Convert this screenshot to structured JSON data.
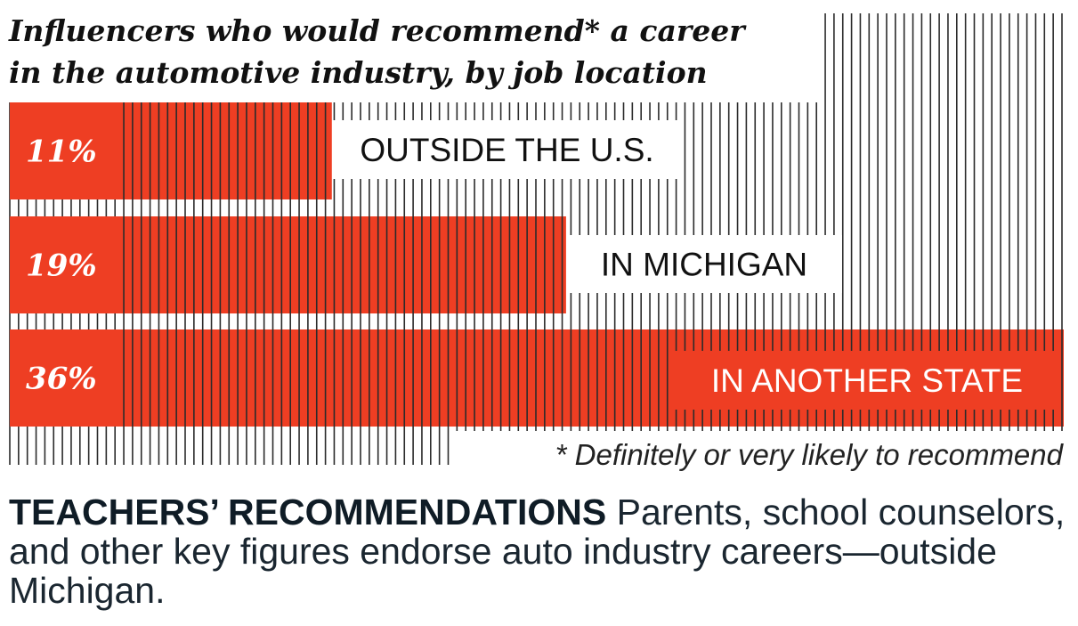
{
  "chart_data": {
    "type": "bar",
    "orientation": "horizontal",
    "title": "Influencers who would recommend* a career in the automotive industry, by job location",
    "title_lines": [
      "Influencers who would recommend* a career",
      "in the automotive industry, by job location"
    ],
    "categories": [
      "OUTSIDE THE U.S.",
      "IN MICHIGAN",
      "IN ANOTHER STATE"
    ],
    "values": [
      11,
      19,
      36
    ],
    "value_labels": [
      "11%",
      "19%",
      "36%"
    ],
    "unit": "%",
    "footnote": "* Definitely or very likely to recommend",
    "grid": false,
    "colors": {
      "bar": "#ee3e23",
      "stripes": "#2b2b2b",
      "text": "#111111"
    }
  },
  "caption": {
    "heading": "TEACHERS’ RECOMMENDATIONS",
    "body": " Parents, school counselors, and other key figures endorse auto industry careers—outside Michigan."
  }
}
